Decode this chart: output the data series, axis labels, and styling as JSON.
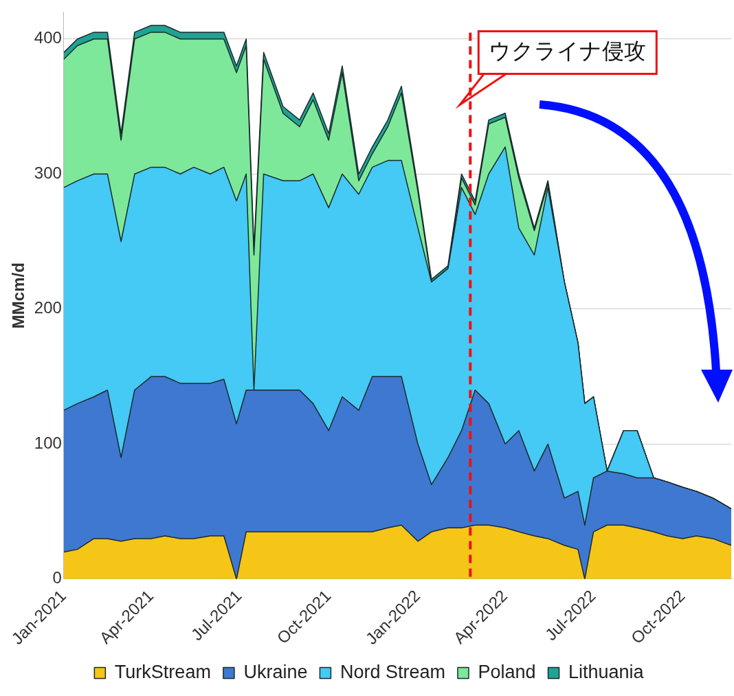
{
  "chart_data": {
    "type": "area",
    "stacked": true,
    "ylabel": "MMcm/d",
    "x": [
      "2021-01-01",
      "2021-01-15",
      "2021-02-01",
      "2021-02-15",
      "2021-03-01",
      "2021-03-15",
      "2021-04-01",
      "2021-04-15",
      "2021-05-01",
      "2021-05-15",
      "2021-06-01",
      "2021-06-15",
      "2021-06-28",
      "2021-07-08",
      "2021-07-16",
      "2021-07-26",
      "2021-08-15",
      "2021-09-01",
      "2021-09-15",
      "2021-10-01",
      "2021-10-15",
      "2021-11-01",
      "2021-11-15",
      "2021-12-01",
      "2021-12-15",
      "2022-01-01",
      "2022-01-15",
      "2022-02-01",
      "2022-02-15",
      "2022-03-01",
      "2022-03-15",
      "2022-04-01",
      "2022-04-15",
      "2022-05-01",
      "2022-05-15",
      "2022-06-01",
      "2022-06-15",
      "2022-06-22",
      "2022-07-01",
      "2022-07-15",
      "2022-08-01",
      "2022-08-15",
      "2022-09-01",
      "2022-09-15",
      "2022-10-01",
      "2022-10-15",
      "2022-11-01",
      "2022-11-20"
    ],
    "series": [
      {
        "name": "TurkStream",
        "color": "#f5c518",
        "values": [
          20,
          22,
          30,
          30,
          28,
          30,
          30,
          32,
          30,
          30,
          32,
          32,
          0,
          35,
          35,
          35,
          35,
          35,
          35,
          35,
          35,
          35,
          35,
          38,
          40,
          28,
          35,
          38,
          38,
          40,
          40,
          38,
          35,
          32,
          30,
          25,
          22,
          0,
          35,
          40,
          40,
          38,
          35,
          32,
          30,
          32,
          30,
          25
        ]
      },
      {
        "name": "Ukraine",
        "color": "#3f78d0",
        "values": [
          105,
          108,
          105,
          110,
          62,
          110,
          120,
          118,
          115,
          115,
          113,
          116,
          115,
          105,
          105,
          105,
          105,
          105,
          95,
          75,
          100,
          90,
          115,
          112,
          110,
          72,
          35,
          52,
          72,
          100,
          90,
          62,
          75,
          48,
          70,
          35,
          43,
          40,
          40,
          40,
          38,
          37,
          40,
          40,
          38,
          33,
          30,
          27
        ]
      },
      {
        "name": "Nord Stream",
        "color": "#45c9f5",
        "values": [
          165,
          165,
          165,
          160,
          160,
          160,
          155,
          155,
          155,
          160,
          155,
          157,
          165,
          160,
          0,
          160,
          155,
          155,
          170,
          165,
          165,
          160,
          155,
          160,
          160,
          160,
          150,
          140,
          180,
          130,
          170,
          220,
          150,
          160,
          190,
          160,
          110,
          90,
          60,
          0,
          32,
          35,
          0,
          0,
          0,
          0,
          0,
          0
        ]
      },
      {
        "name": "Poland",
        "color": "#7ee89a",
        "values": [
          95,
          100,
          100,
          100,
          75,
          100,
          100,
          100,
          100,
          95,
          100,
          95,
          95,
          95,
          100,
          85,
          50,
          40,
          55,
          50,
          75,
          10,
          10,
          25,
          50,
          27,
          0,
          0,
          7,
          7,
          37,
          22,
          37,
          18,
          3,
          0,
          0,
          0,
          0,
          0,
          0,
          0,
          0,
          0,
          0,
          0,
          0,
          0
        ]
      },
      {
        "name": "Lithuania",
        "color": "#1fa394",
        "values": [
          5,
          5,
          5,
          5,
          5,
          5,
          5,
          5,
          5,
          5,
          5,
          5,
          5,
          5,
          5,
          5,
          5,
          5,
          5,
          5,
          5,
          5,
          5,
          5,
          5,
          3,
          2,
          2,
          3,
          3,
          3,
          3,
          3,
          2,
          2,
          0,
          0,
          0,
          0,
          0,
          0,
          0,
          0,
          0,
          0,
          0,
          0,
          0
        ]
      }
    ],
    "xlim": [
      "2021-01-01",
      "2022-11-20"
    ],
    "xticks": [
      {
        "value": "2021-01-01",
        "label": "Jan-2021"
      },
      {
        "value": "2021-04-01",
        "label": "Apr-2021"
      },
      {
        "value": "2021-07-01",
        "label": "Jul-2021"
      },
      {
        "value": "2021-10-01",
        "label": "Oct-2021"
      },
      {
        "value": "2022-01-01",
        "label": "Jan-2022"
      },
      {
        "value": "2022-04-01",
        "label": "Apr-2022"
      },
      {
        "value": "2022-07-01",
        "label": "Jul-2022"
      },
      {
        "value": "2022-10-01",
        "label": "Oct-2022"
      }
    ],
    "ylim": [
      0,
      420
    ],
    "yticks": [
      0,
      100,
      200,
      300,
      400
    ],
    "ref_lines": [
      {
        "axis": "x",
        "value": "2022-02-24",
        "label": "ウクライナ侵攻",
        "color": "#ee1111",
        "line_style": "dashed"
      }
    ],
    "grid": "y",
    "legend": "bottom",
    "marker": "none"
  }
}
